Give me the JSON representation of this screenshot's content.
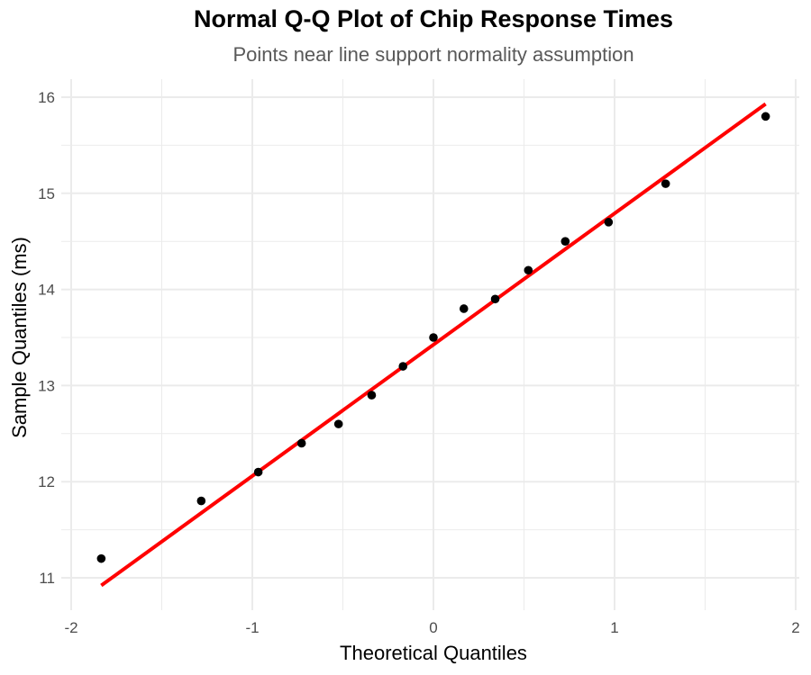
{
  "chart_data": {
    "type": "scatter",
    "title": "Normal Q-Q Plot of Chip Response Times",
    "subtitle": "Points near line support normality assumption",
    "xlabel": "Theoretical Quantiles",
    "ylabel": "Sample Quantiles (ms)",
    "xlim": [
      -2,
      2
    ],
    "ylim": [
      10.7,
      16.2
    ],
    "x_ticks": [
      -2,
      -1,
      0,
      1,
      2
    ],
    "y_ticks": [
      11,
      12,
      13,
      14,
      15,
      16
    ],
    "x_tick_labels": [
      "-2",
      "-1",
      "0",
      "1",
      "2"
    ],
    "y_tick_labels": [
      "11",
      "12",
      "13",
      "14",
      "15",
      "16"
    ],
    "grid": true,
    "points": [
      {
        "x": -1.834,
        "y": 11.2
      },
      {
        "x": -1.282,
        "y": 11.8
      },
      {
        "x": -0.967,
        "y": 12.1
      },
      {
        "x": -0.728,
        "y": 12.4
      },
      {
        "x": -0.524,
        "y": 12.6
      },
      {
        "x": -0.341,
        "y": 12.9
      },
      {
        "x": -0.168,
        "y": 13.2
      },
      {
        "x": 0.0,
        "y": 13.5
      },
      {
        "x": 0.168,
        "y": 13.8
      },
      {
        "x": 0.341,
        "y": 13.9
      },
      {
        "x": 0.524,
        "y": 14.2
      },
      {
        "x": 0.728,
        "y": 14.5
      },
      {
        "x": 0.967,
        "y": 14.7
      },
      {
        "x": 1.282,
        "y": 15.1
      },
      {
        "x": 1.834,
        "y": 15.8
      }
    ],
    "reference_line": {
      "x1": -1.834,
      "y1": 10.92,
      "x2": 1.834,
      "y2": 15.93
    },
    "colors": {
      "points": "#000000",
      "line": "#ff0000",
      "grid": "#ebebeb"
    }
  }
}
